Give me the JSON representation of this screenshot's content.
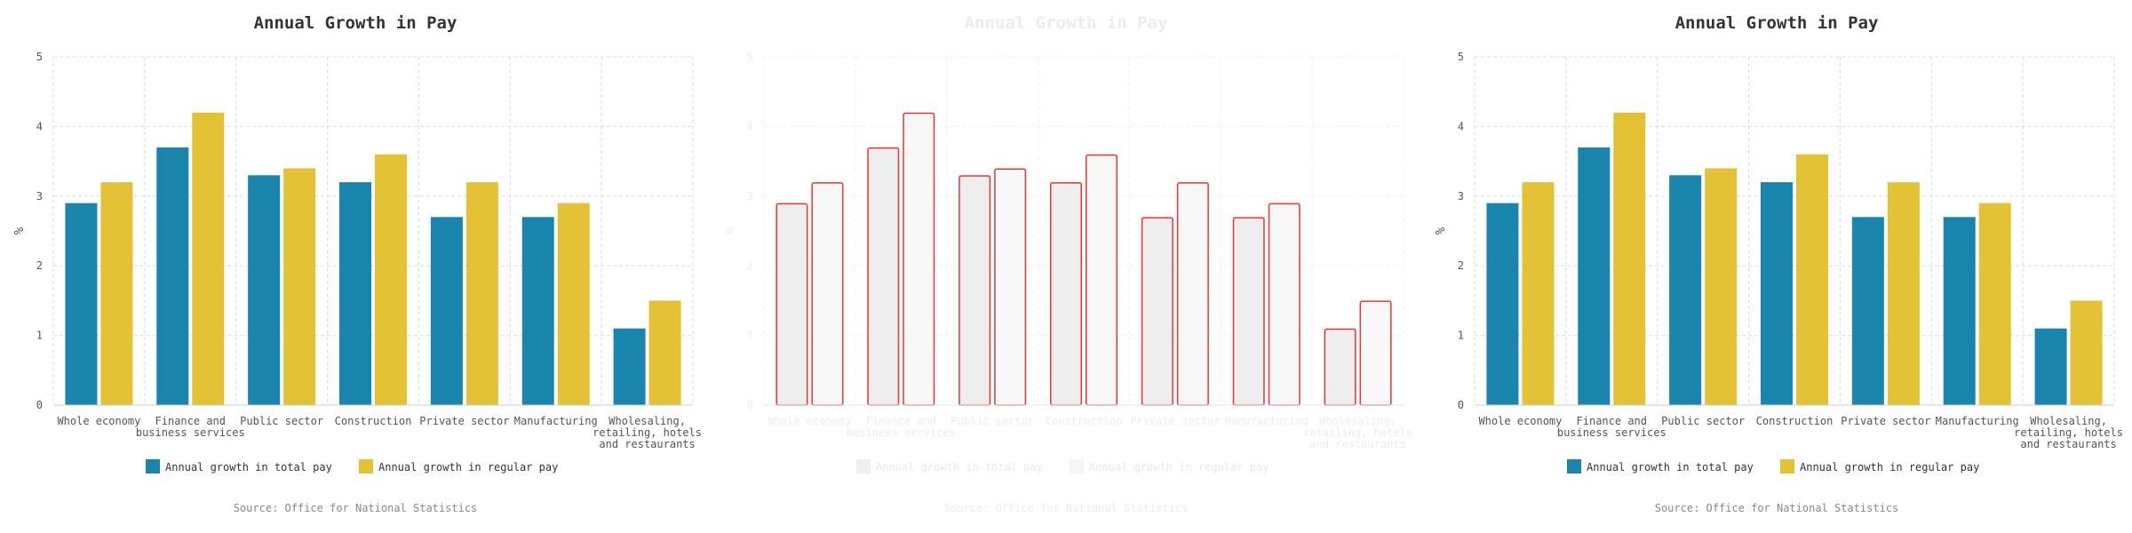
{
  "chart_data": [
    {
      "type": "bar",
      "title": "Annual Growth in Pay",
      "ylabel": "%",
      "xlabel": "",
      "ylim": [
        0,
        5
      ],
      "yticks": [
        "0",
        "1",
        "2",
        "3",
        "4",
        "5"
      ],
      "grid": true,
      "legend_position": "bottom",
      "source": "Source: Office for National Statistics",
      "categories": [
        "Whole economy",
        "Finance and business services",
        "Public sector",
        "Construction",
        "Private sector",
        "Manufacturing",
        "Wholesaling, retailing, hotels and restaurants"
      ],
      "category_lines": [
        [
          "Whole economy"
        ],
        [
          "Finance and",
          "business services"
        ],
        [
          "Public sector"
        ],
        [
          "Construction"
        ],
        [
          "Private sector"
        ],
        [
          "Manufacturing"
        ],
        [
          "Wholesaling,",
          "retailing, hotels",
          "and restaurants"
        ]
      ],
      "series": [
        {
          "name": "Annual growth in total pay",
          "values": [
            2.9,
            3.7,
            3.3,
            3.2,
            2.7,
            2.7,
            1.1
          ],
          "color": "#1a85ad"
        },
        {
          "name": "Annual growth in regular pay",
          "values": [
            3.2,
            4.2,
            3.4,
            3.6,
            3.2,
            2.9,
            1.5
          ],
          "color": "#e3c236"
        }
      ]
    },
    {
      "type": "bar",
      "title": "Annual Growth in Pay",
      "ylabel": "%",
      "xlabel": "",
      "ylim": [
        0,
        5
      ],
      "yticks": [
        "0",
        "1",
        "2",
        "3",
        "4",
        "5"
      ],
      "grid": true,
      "legend_position": "bottom",
      "faded": true,
      "source": "Source: Office for National Statistics",
      "categories": [
        "Whole economy",
        "Finance and business services",
        "Public sector",
        "Construction",
        "Private sector",
        "Manufacturing",
        "Wholesaling, retailing, hotels and restaurants"
      ],
      "category_lines": [
        [
          "Whole economy"
        ],
        [
          "Finance and",
          "business services"
        ],
        [
          "Public sector"
        ],
        [
          "Construction"
        ],
        [
          "Private sector"
        ],
        [
          "Manufacturing"
        ],
        [
          "Wholesaling,",
          "retailing, hotels",
          "and restaurants"
        ]
      ],
      "series": [
        {
          "name": "Annual growth in total pay",
          "values": [
            2.9,
            3.7,
            3.3,
            3.2,
            2.7,
            2.7,
            1.1
          ],
          "color": "#eeeeee",
          "outline": "#ee3333"
        },
        {
          "name": "Annual growth in regular pay",
          "values": [
            3.2,
            4.2,
            3.4,
            3.6,
            3.2,
            2.9,
            1.5
          ],
          "color": "#f8f8f8",
          "outline": "#ee3333"
        }
      ]
    },
    {
      "type": "bar",
      "title": "Annual Growth in Pay",
      "ylabel": "%",
      "xlabel": "",
      "ylim": [
        0,
        5
      ],
      "yticks": [
        "0",
        "1",
        "2",
        "3",
        "4",
        "5"
      ],
      "grid": true,
      "legend_position": "bottom",
      "source": "Source: Office for National Statistics",
      "categories": [
        "Whole economy",
        "Finance and business services",
        "Public sector",
        "Construction",
        "Private sector",
        "Manufacturing",
        "Wholesaling, retailing, hotels and restaurants"
      ],
      "category_lines": [
        [
          "Whole economy"
        ],
        [
          "Finance and",
          "business services"
        ],
        [
          "Public sector"
        ],
        [
          "Construction"
        ],
        [
          "Private sector"
        ],
        [
          "Manufacturing"
        ],
        [
          "Wholesaling,",
          "retailing, hotels",
          "and restaurants"
        ]
      ],
      "series": [
        {
          "name": "Annual growth in total pay",
          "values": [
            2.9,
            3.7,
            3.3,
            3.2,
            2.7,
            2.7,
            1.1
          ],
          "color": "#1a85ad"
        },
        {
          "name": "Annual growth in regular pay",
          "values": [
            3.2,
            4.2,
            3.4,
            3.6,
            3.2,
            2.9,
            1.5
          ],
          "color": "#e3c236"
        }
      ]
    }
  ]
}
